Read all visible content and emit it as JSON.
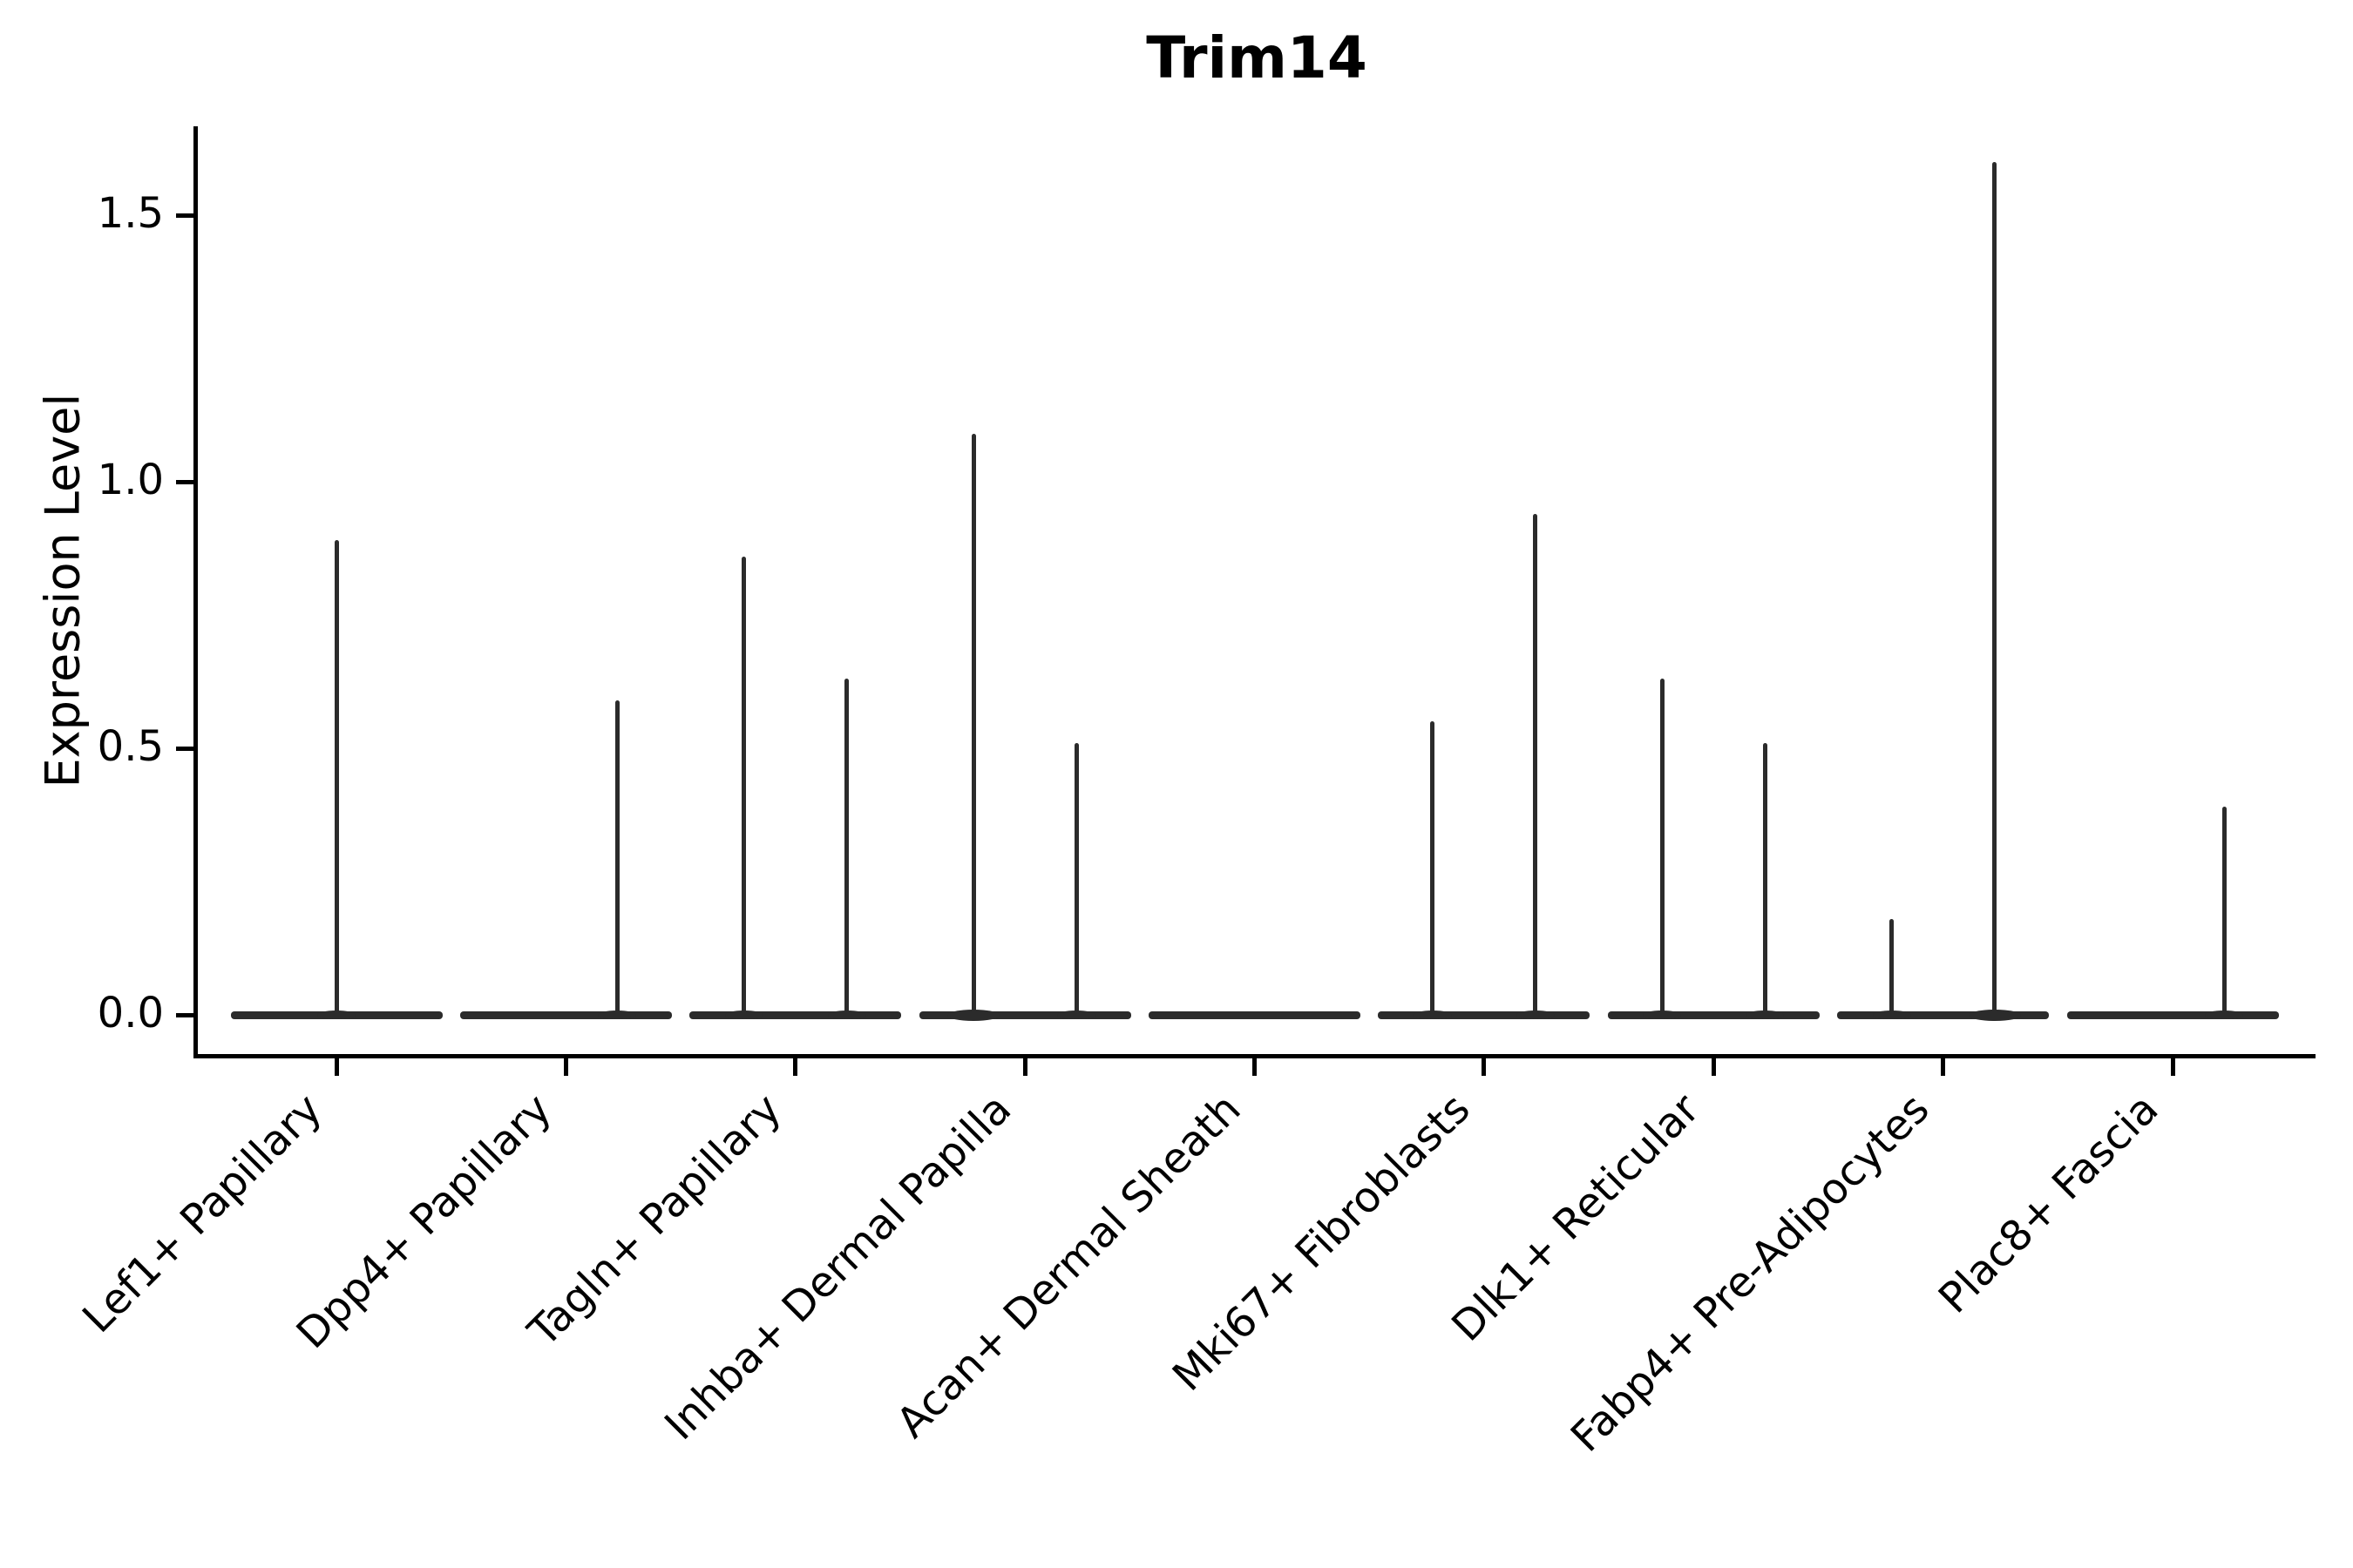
{
  "chart_data": {
    "type": "violin",
    "title": "Trim14",
    "ylabel": "Expression Level",
    "xlabel": "",
    "yticks": [
      "0.0",
      "0.5",
      "1.0",
      "1.5"
    ],
    "ylim": [
      -0.07,
      1.67
    ],
    "grid": false,
    "legend": "none",
    "x_tick_label_rotation_deg": 45,
    "violin_color": "#2b2b2b",
    "axis_color": "#000000",
    "note": "Each cell type shows a violin collapsed at expression 0 (flat bar) with thin spikes reaching the maximum expression; spikes sit at the left/right dodge position when two groups are present, centered when one.",
    "slot_offset_category_units": 0.225,
    "categories": [
      {
        "label": "Lef1+ Papillary",
        "spikes": [
          {
            "slot": "center",
            "max": 0.89
          }
        ]
      },
      {
        "label": "Dpp4+ Papillary",
        "spikes": [
          {
            "slot": "right",
            "max": 0.59
          }
        ]
      },
      {
        "label": "Tagln+ Papillary",
        "spikes": [
          {
            "slot": "left",
            "max": 0.86
          },
          {
            "slot": "right",
            "max": 0.63
          }
        ]
      },
      {
        "label": "Inhba+ Dermal Papilla",
        "spikes": [
          {
            "slot": "left",
            "max": 1.09
          },
          {
            "slot": "right",
            "max": 0.51
          }
        ]
      },
      {
        "label": "Acan+ Dermal Sheath",
        "spikes": []
      },
      {
        "label": "Mki67+ Fibroblasts",
        "spikes": [
          {
            "slot": "left",
            "max": 0.55
          },
          {
            "slot": "right",
            "max": 0.94
          }
        ]
      },
      {
        "label": "Dlk1+ Reticular",
        "spikes": [
          {
            "slot": "left",
            "max": 0.63
          },
          {
            "slot": "right",
            "max": 0.51
          }
        ]
      },
      {
        "label": "Fabp4+ Pre-Adipocytes",
        "spikes": [
          {
            "slot": "left",
            "max": 0.18
          },
          {
            "slot": "right",
            "max": 1.6
          }
        ]
      },
      {
        "label": "Plac8+ Fascia",
        "spikes": [
          {
            "slot": "right",
            "max": 0.39
          }
        ]
      }
    ]
  }
}
